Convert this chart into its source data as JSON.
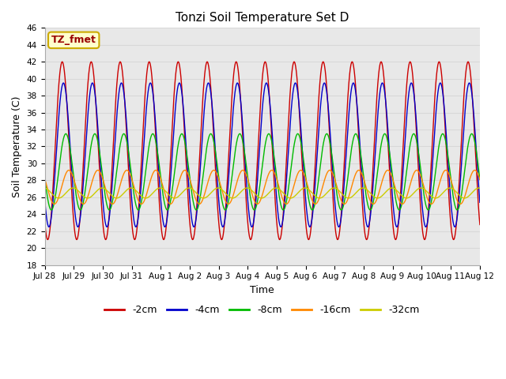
{
  "title": "Tonzi Soil Temperature Set D",
  "xlabel": "Time",
  "ylabel": "Soil Temperature (C)",
  "ylim": [
    18,
    46
  ],
  "yticks": [
    18,
    20,
    22,
    24,
    26,
    28,
    30,
    32,
    34,
    36,
    38,
    40,
    42,
    44,
    46
  ],
  "annotation_text": "TZ_fmet",
  "annotation_bg": "#ffffcc",
  "annotation_border": "#ccaa00",
  "series_colors": [
    "#cc0000",
    "#0000cc",
    "#00bb00",
    "#ff8800",
    "#cccc00"
  ],
  "series_labels": [
    "-2cm",
    "-4cm",
    "-8cm",
    "-16cm",
    "-32cm"
  ],
  "period_hours": 24,
  "n_days": 15.5,
  "dt_hours": 0.25,
  "amplitudes": [
    10.5,
    8.5,
    4.5,
    2.0,
    0.6
  ],
  "phase_delays_hours": [
    0.0,
    1.0,
    3.0,
    5.5,
    9.0
  ],
  "mean_temps": [
    31.5,
    31.0,
    29.0,
    27.2,
    26.5
  ],
  "peak_hour": 14.5,
  "x_tick_labels": [
    "Jul 28",
    "Jul 29",
    "Jul 30",
    "Jul 31",
    "Aug 1",
    "Aug 2",
    "Aug 3",
    "Aug 4",
    "Aug 5",
    "Aug 6",
    "Aug 7",
    "Aug 8",
    "Aug 9",
    "Aug 10",
    "Aug 11",
    "Aug 12"
  ],
  "x_tick_positions": [
    0,
    24,
    48,
    72,
    96,
    120,
    144,
    168,
    192,
    216,
    240,
    264,
    288,
    312,
    336,
    360
  ],
  "linewidth": 1.0,
  "grid_color": "#d8d8d8",
  "grid_linewidth": 0.8,
  "fig_bg": "#ffffff",
  "plot_bg": "#e8e8e8"
}
